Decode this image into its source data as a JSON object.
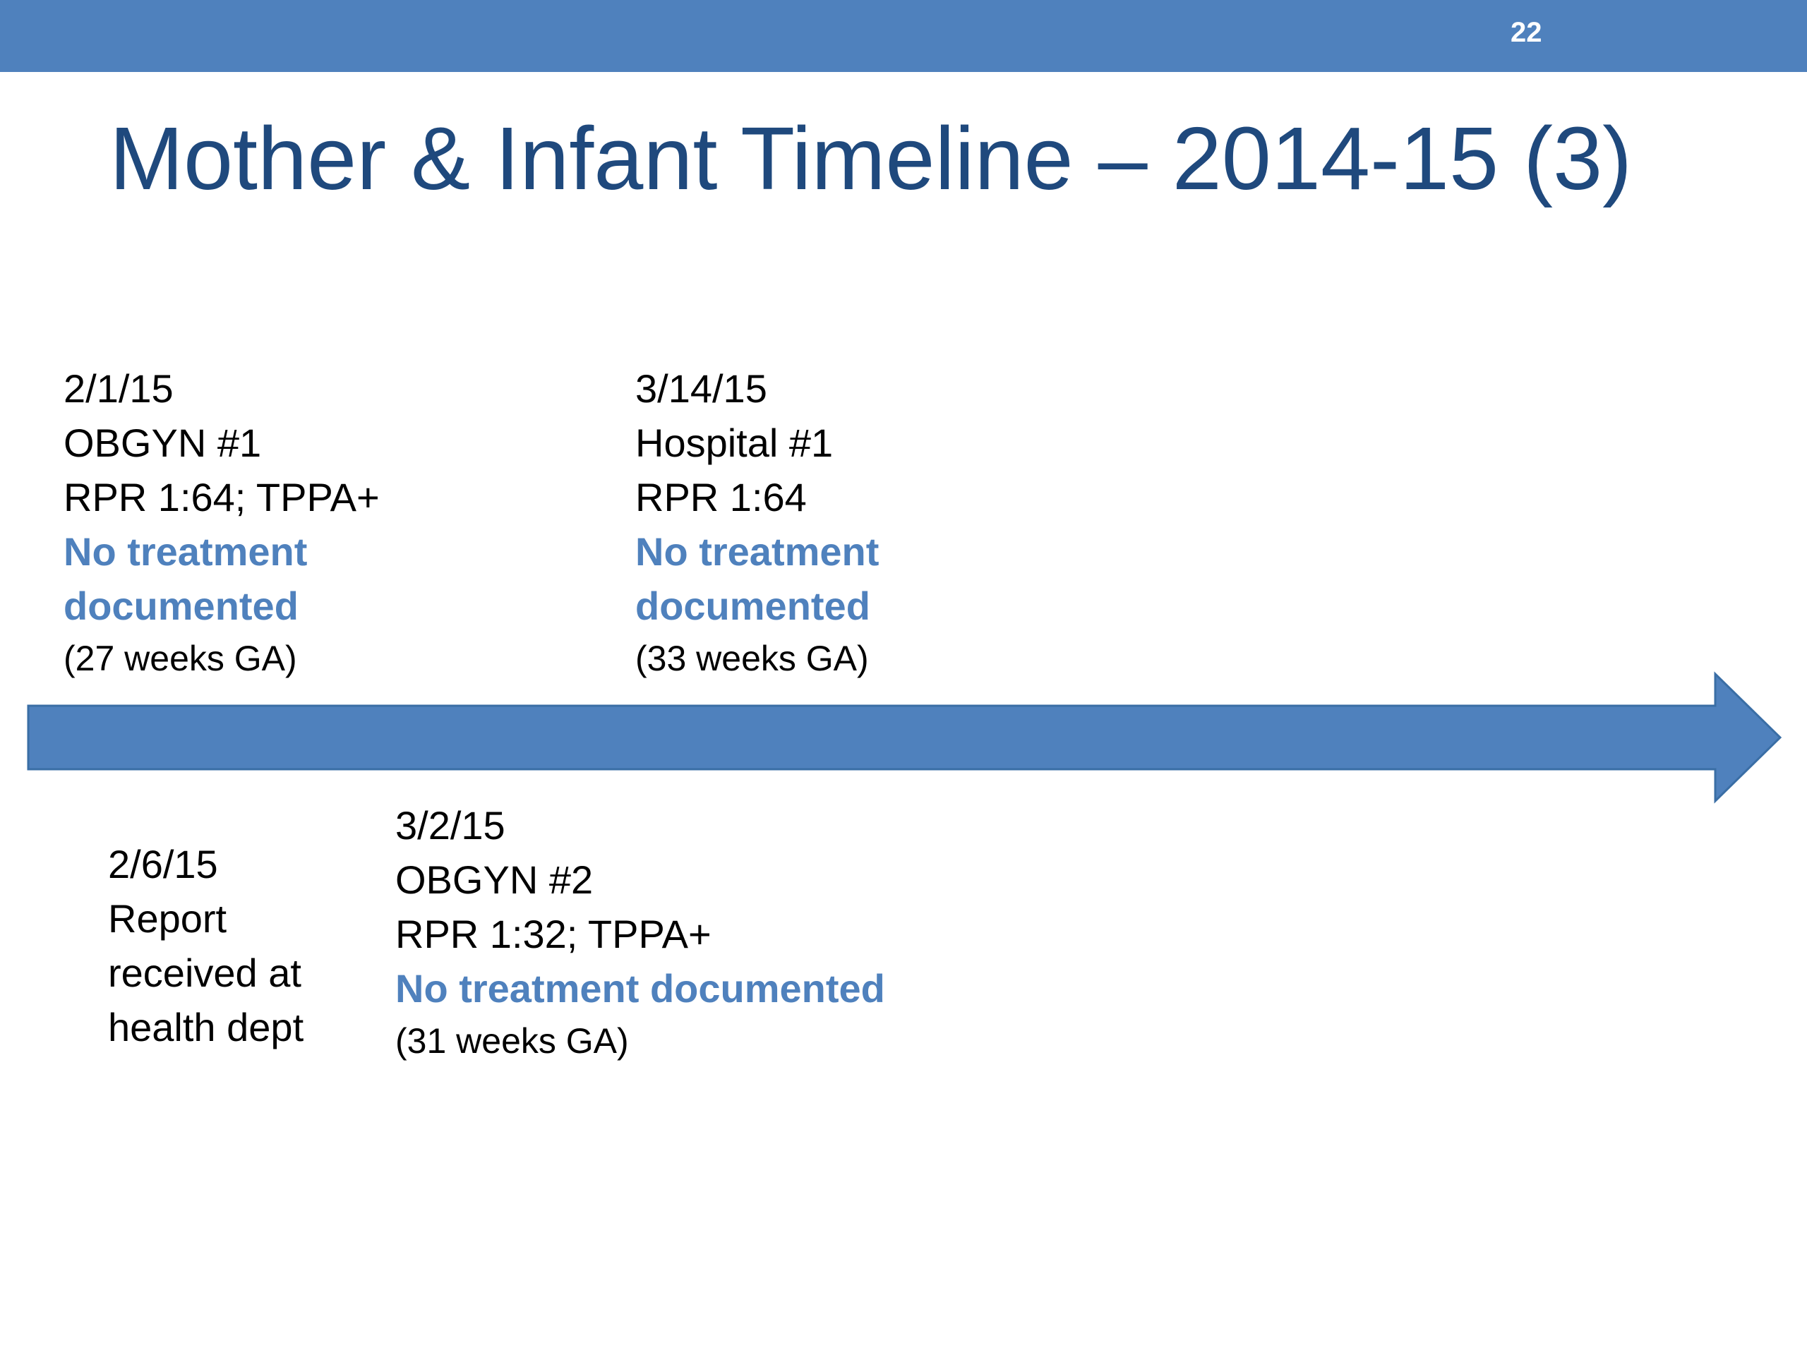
{
  "slide": {
    "number": "22",
    "title": "Mother & Infant Timeline – 2014-15 (3)"
  },
  "colors": {
    "bar": "#4f81bd",
    "title": "#1f497d",
    "highlight": "#4f81bd",
    "text": "#000000"
  },
  "events_above": [
    {
      "date": "2/1/15",
      "place": "OBGYN #1",
      "result": "RPR 1:64; TPPA+",
      "status_line1": "No treatment",
      "status_line2": "documented",
      "gestation": "(27 weeks GA)"
    },
    {
      "date": "3/14/15",
      "place": "Hospital #1",
      "result": "RPR 1:64",
      "status_line1": "No treatment",
      "status_line2": "documented",
      "gestation": "(33 weeks GA)"
    }
  ],
  "events_below": [
    {
      "date": "2/6/15",
      "line1": "Report",
      "line2": "received at",
      "line3": "health dept"
    },
    {
      "date": "3/2/15",
      "place": "OBGYN #2",
      "result": "RPR 1:32; TPPA+",
      "status": "No treatment documented",
      "gestation": "(31 weeks GA)"
    }
  ]
}
